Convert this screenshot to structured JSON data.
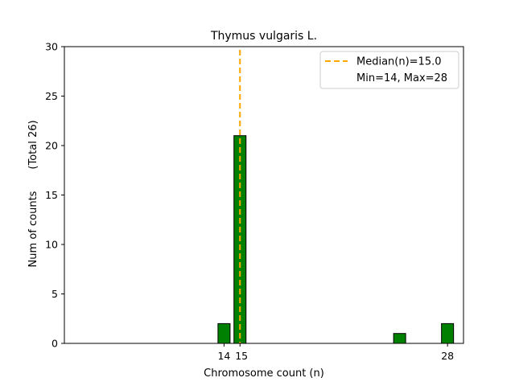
{
  "chart_data": {
    "type": "bar",
    "title": "Thymus vulgaris L.",
    "xlabel": "Chromosome count (n)",
    "ylabel": "Num of counts",
    "ylabel2": "(Total 26)",
    "xlim": [
      4.0,
      29.0
    ],
    "ylim": [
      0,
      30
    ],
    "yticks": [
      0,
      5,
      10,
      15,
      20,
      25,
      30
    ],
    "xticks": [
      {
        "value": 14,
        "label": "14"
      },
      {
        "value": 15,
        "label": "15"
      },
      {
        "value": 28,
        "label": "28"
      }
    ],
    "bars": [
      {
        "x": 14,
        "count": 2
      },
      {
        "x": 15,
        "count": 21
      },
      {
        "x": 25,
        "count": 1
      },
      {
        "x": 28,
        "count": 2
      }
    ],
    "bar_color": "#008000",
    "bar_edge_color": "#000000",
    "median": 15.0,
    "median_color": "#FFA500",
    "legend": {
      "position": "top-right",
      "median_label": "Median(n)=15.0",
      "range_label": "Min=14, Max=28"
    },
    "grid": false
  }
}
